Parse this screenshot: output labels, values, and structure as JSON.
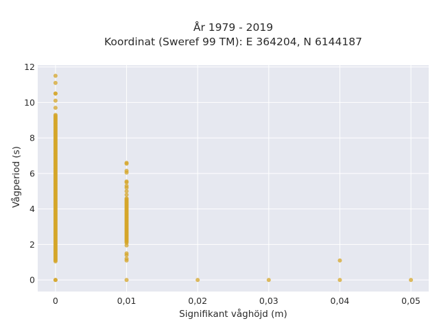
{
  "chart_data": {
    "type": "scatter",
    "title": "År 1979 - 2019",
    "subtitle": "Koordinat (Sweref 99 TM): E 364204, N 6144187",
    "xlabel": "Signifikant våghöjd (m)",
    "ylabel": "Vågperiod (s)",
    "xlim": [
      -0.0025,
      0.0525
    ],
    "ylim": [
      -0.65,
      12.1
    ],
    "x_ticks": [
      0,
      0.01,
      0.02,
      0.03,
      0.04,
      0.05
    ],
    "x_tick_labels": [
      "0",
      "0,01",
      "0,02",
      "0,03",
      "0,04",
      "0,05"
    ],
    "y_ticks": [
      0,
      2,
      4,
      6,
      8,
      10,
      12
    ],
    "y_tick_labels": [
      "0",
      "2",
      "4",
      "6",
      "8",
      "10",
      "12"
    ],
    "grid": true,
    "legend": "none",
    "colors": {
      "marker": "#d4a52a",
      "plot_background": "#e6e8f0",
      "grid": "#ffffff"
    },
    "series": [
      {
        "x_values": [
          0
        ],
        "y_dense_range": [
          1.05,
          9.3
        ],
        "y_extra": [
          0,
          0,
          9.7,
          10.1,
          10.5,
          10.5,
          11.1,
          11.5
        ]
      },
      {
        "x_values": [
          0.01
        ],
        "y_dense_range": [
          2.1,
          4.6
        ],
        "y_extra": [
          0,
          1.1,
          1.2,
          1.4,
          1.5,
          1.95,
          4.8,
          5.0,
          5.2,
          5.3,
          5.5,
          5.55,
          6.05,
          6.15,
          6.55,
          6.6
        ]
      },
      {
        "x_values": [
          0.02
        ],
        "y_dense_range": null,
        "y_extra": [
          0
        ]
      },
      {
        "x_values": [
          0.03
        ],
        "y_dense_range": null,
        "y_extra": [
          0
        ]
      },
      {
        "x_values": [
          0.04
        ],
        "y_dense_range": null,
        "y_extra": [
          0,
          1.1
        ]
      },
      {
        "x_values": [
          0.05
        ],
        "y_dense_range": null,
        "y_extra": [
          0
        ]
      }
    ]
  }
}
